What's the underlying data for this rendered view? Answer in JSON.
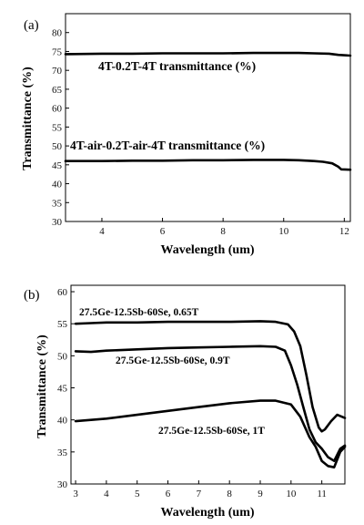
{
  "chart_data": [
    {
      "type": "line",
      "panel_label": "(a)",
      "xlabel": "Wavelength (um)",
      "ylabel": "Transmittance (%)",
      "xlim": [
        2.8,
        12.2
      ],
      "ylim": [
        30,
        85
      ],
      "xticks": [
        4,
        6,
        8,
        10,
        12
      ],
      "yticks": [
        30,
        35,
        40,
        45,
        50,
        55,
        60,
        65,
        70,
        75,
        80
      ],
      "grid": false,
      "series": [
        {
          "name": "4T-0.2T-4T transmittance (%)",
          "x": [
            2.8,
            4,
            5,
            6,
            7,
            8,
            9,
            10,
            10.5,
            11,
            11.5,
            11.8,
            12.2
          ],
          "y": [
            74.3,
            74.4,
            74.4,
            74.5,
            74.5,
            74.5,
            74.6,
            74.6,
            74.6,
            74.5,
            74.4,
            74.1,
            73.9
          ]
        },
        {
          "name": "4T-air-0.2T-air-4T transmittance (%)",
          "x": [
            2.8,
            4,
            5,
            6,
            7,
            8,
            9,
            10,
            10.5,
            11,
            11.3,
            11.6,
            11.8,
            11.9,
            12.2
          ],
          "y": [
            46.0,
            46.0,
            46.1,
            46.1,
            46.2,
            46.2,
            46.3,
            46.3,
            46.2,
            46.0,
            45.8,
            45.4,
            44.5,
            43.8,
            43.7
          ]
        }
      ]
    },
    {
      "type": "line",
      "panel_label": "(b)",
      "xlabel": "Wavelength (um)",
      "ylabel": "Transmittance (%)",
      "xlim": [
        2.85,
        11.75
      ],
      "ylim": [
        30,
        61
      ],
      "xticks": [
        3,
        4,
        5,
        6,
        7,
        8,
        9,
        10,
        11
      ],
      "yticks": [
        30,
        35,
        40,
        45,
        50,
        55,
        60
      ],
      "grid": false,
      "series": [
        {
          "name": "27.5Ge-12.5Sb-60Se, 0.65T",
          "x": [
            3.0,
            3.5,
            4,
            5,
            6,
            7,
            8,
            9,
            9.5,
            9.9,
            10.1,
            10.3,
            10.5,
            10.7,
            10.9,
            11.0,
            11.1,
            11.3,
            11.5,
            11.75
          ],
          "y": [
            55.0,
            55.1,
            55.2,
            55.2,
            55.3,
            55.3,
            55.3,
            55.4,
            55.3,
            54.9,
            53.8,
            51.5,
            47.0,
            42.0,
            38.8,
            38.2,
            38.5,
            39.8,
            40.8,
            40.3
          ]
        },
        {
          "name": "27.5Ge-12.5Sb-60Se, 0.9T",
          "x": [
            3.0,
            3.5,
            4,
            5,
            6,
            7,
            8,
            9,
            9.5,
            9.8,
            10.0,
            10.2,
            10.4,
            10.6,
            10.8,
            11.0,
            11.2,
            11.4,
            11.6,
            11.75
          ],
          "y": [
            50.7,
            50.6,
            50.8,
            51.0,
            51.2,
            51.3,
            51.4,
            51.5,
            51.4,
            50.8,
            48.5,
            45.5,
            42.0,
            38.5,
            36.5,
            35.5,
            34.2,
            33.6,
            35.5,
            36.0
          ]
        },
        {
          "name": "27.5Ge-12.5Sb-60Se, 1T",
          "x": [
            3.0,
            4,
            5,
            6,
            7,
            8,
            9,
            9.5,
            10.0,
            10.3,
            10.6,
            10.8,
            11.0,
            11.2,
            11.4,
            11.6,
            11.75
          ],
          "y": [
            39.8,
            40.2,
            40.8,
            41.4,
            42.0,
            42.6,
            43.0,
            43.0,
            42.4,
            40.5,
            37.3,
            35.8,
            33.6,
            32.8,
            32.6,
            35.0,
            35.8
          ]
        }
      ],
      "annotations": [
        "27.5Ge-12.5Sb-60Se, 0.65T",
        "27.5Ge-12.5Sb-60Se, 0.9T",
        "27.5Ge-12.5Sb-60Se, 1T"
      ]
    }
  ]
}
